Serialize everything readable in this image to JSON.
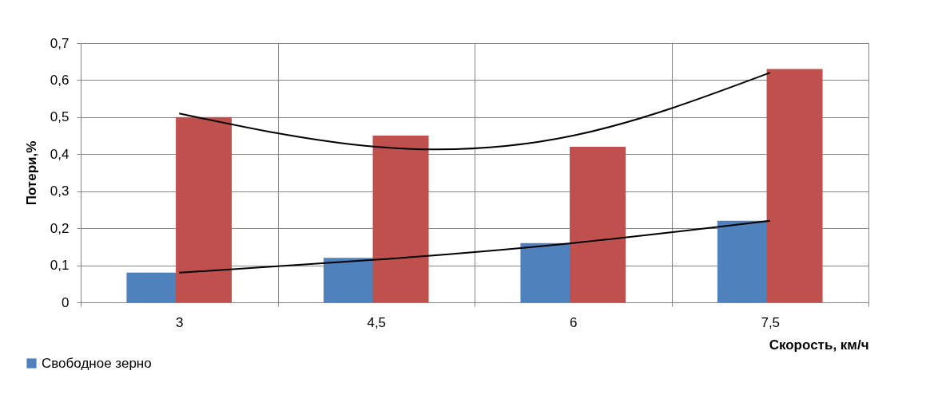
{
  "chart_data": {
    "type": "bar",
    "xlabel": "Скорость, км/ч",
    "ylabel": "Потери,%",
    "categories": [
      "3",
      "4,5",
      "6",
      "7,5"
    ],
    "series": [
      {
        "name": "Свободное зерно",
        "color": "#4f81bd",
        "values": [
          0.08,
          0.12,
          0.16,
          0.22
        ]
      },
      {
        "color": "#c0504d",
        "values": [
          0.5,
          0.45,
          0.42,
          0.63
        ]
      },
      {
        "type": "line",
        "color": "#000000",
        "values": [
          0.51,
          0.42,
          0.45,
          0.62
        ]
      },
      {
        "type": "line",
        "color": "#000000",
        "values": [
          0.08,
          0.115,
          0.16,
          0.22
        ]
      }
    ],
    "ylim": [
      0,
      0.7
    ],
    "yticks": [
      {
        "value": 0,
        "label": "0"
      },
      {
        "value": 0.1,
        "label": "0,1"
      },
      {
        "value": 0.2,
        "label": "0,2"
      },
      {
        "value": 0.3,
        "label": "0,3"
      },
      {
        "value": 0.4,
        "label": "0,4"
      },
      {
        "value": 0.5,
        "label": "0,5"
      },
      {
        "value": 0.6,
        "label": "0,6"
      },
      {
        "value": 0.7,
        "label": "0,7"
      }
    ],
    "grid": true,
    "legend": "bottom left"
  }
}
